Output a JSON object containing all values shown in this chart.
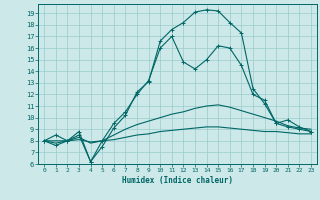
{
  "xlabel": "Humidex (Indice chaleur)",
  "bg_color": "#cce8e8",
  "grid_color": "#99cccc",
  "line_color": "#006666",
  "xlim": [
    -0.5,
    23.5
  ],
  "ylim": [
    6,
    19.8
  ],
  "yticks": [
    6,
    7,
    8,
    9,
    10,
    11,
    12,
    13,
    14,
    15,
    16,
    17,
    18,
    19
  ],
  "xticks": [
    0,
    1,
    2,
    3,
    4,
    5,
    6,
    7,
    8,
    9,
    10,
    11,
    12,
    13,
    14,
    15,
    16,
    17,
    18,
    19,
    20,
    21,
    22,
    23
  ],
  "curve1_x": [
    0,
    1,
    2,
    3,
    4,
    5,
    6,
    7,
    8,
    9,
    10,
    11,
    12,
    13,
    14,
    15,
    16,
    17,
    18,
    19,
    20,
    21,
    22,
    23
  ],
  "curve1_y": [
    8.0,
    7.6,
    8.0,
    8.5,
    6.2,
    7.5,
    9.1,
    10.2,
    12.2,
    13.1,
    16.6,
    17.6,
    18.2,
    19.1,
    19.3,
    19.2,
    18.2,
    17.3,
    12.5,
    11.2,
    9.5,
    9.2,
    9.0,
    8.8
  ],
  "curve2_x": [
    0,
    1,
    2,
    3,
    4,
    5,
    6,
    7,
    8,
    9,
    10,
    11,
    12,
    13,
    14,
    15,
    16,
    17,
    18,
    19,
    20,
    21,
    22,
    23
  ],
  "curve2_y": [
    8.0,
    7.8,
    8.0,
    8.3,
    7.8,
    8.0,
    8.5,
    9.0,
    9.4,
    9.7,
    10.0,
    10.3,
    10.5,
    10.8,
    11.0,
    11.1,
    10.9,
    10.6,
    10.3,
    10.0,
    9.7,
    9.3,
    9.1,
    9.0
  ],
  "curve3_x": [
    0,
    1,
    2,
    3,
    4,
    5,
    6,
    7,
    8,
    9,
    10,
    11,
    12,
    13,
    14,
    15,
    16,
    17,
    18,
    19,
    20,
    21,
    22,
    23
  ],
  "curve3_y": [
    8.0,
    8.0,
    8.0,
    8.1,
    7.9,
    8.0,
    8.1,
    8.3,
    8.5,
    8.6,
    8.8,
    8.9,
    9.0,
    9.1,
    9.2,
    9.2,
    9.1,
    9.0,
    8.9,
    8.8,
    8.8,
    8.7,
    8.6,
    8.6
  ],
  "curve4_x": [
    0,
    1,
    2,
    3,
    4,
    5,
    6,
    7,
    8,
    9,
    10,
    11,
    12,
    13,
    14,
    15,
    16,
    17,
    18,
    19,
    20,
    21,
    22,
    23
  ],
  "curve4_y": [
    8.0,
    8.5,
    8.0,
    8.8,
    6.2,
    8.0,
    9.5,
    10.5,
    12.0,
    13.2,
    16.0,
    17.0,
    14.8,
    14.2,
    15.0,
    16.2,
    16.0,
    14.5,
    12.0,
    11.5,
    9.5,
    9.8,
    9.2,
    8.8
  ]
}
